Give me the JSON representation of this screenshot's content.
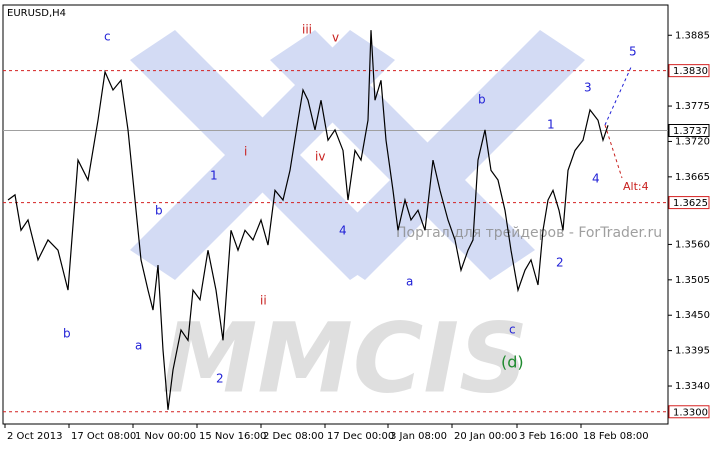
{
  "chart_data": {
    "type": "line",
    "title": "EURUSD,H4",
    "xlim": [
      0,
      665
    ],
    "xticks": [
      {
        "value": 2,
        "label": "2 Oct 2013"
      },
      {
        "value": 66,
        "label": "17 Oct 08:00"
      },
      {
        "value": 130,
        "label": "1 Nov 00:00"
      },
      {
        "value": 194,
        "label": "15 Nov 16:00"
      },
      {
        "value": 258,
        "label": "2 Dec 08:00"
      },
      {
        "value": 322,
        "label": "17 Dec 00:00"
      },
      {
        "value": 385,
        "label": "3 Jan 08:00"
      },
      {
        "value": 449,
        "label": "20 Jan 00:00"
      },
      {
        "value": 514,
        "label": "3 Feb 16:00"
      },
      {
        "value": 578,
        "label": "18 Feb 08:00"
      }
    ],
    "ylim": [
      1.3281,
      1.3932
    ],
    "yticks": [
      {
        "value": 1.3885,
        "label": "1.3885"
      },
      {
        "value": 1.3775,
        "label": "1.3775"
      },
      {
        "value": 1.372,
        "label": "1.3720"
      },
      {
        "value": 1.3665,
        "label": "1.3665"
      },
      {
        "value": 1.356,
        "label": "1.3560"
      },
      {
        "value": 1.3505,
        "label": "1.3505"
      },
      {
        "value": 1.345,
        "label": "1.3450"
      },
      {
        "value": 1.3395,
        "label": "1.3395"
      },
      {
        "value": 1.334,
        "label": "1.3340"
      }
    ],
    "levels": [
      {
        "value": 1.383,
        "label": "1.3830",
        "color": "#d42020"
      },
      {
        "value": 1.3737,
        "label": "1.3737",
        "color": "#a0a0a0"
      },
      {
        "value": 1.3625,
        "label": "1.3625",
        "color": "#d42020"
      },
      {
        "value": 1.33,
        "label": "1.3300",
        "color": "#d42020"
      }
    ],
    "series": [
      {
        "name": "EURUSD",
        "color": "#000000",
        "x": [
          5,
          12,
          18,
          25,
          35,
          45,
          55,
          65,
          75,
          85,
          95,
          102,
          110,
          118,
          125,
          132,
          138,
          145,
          150,
          155,
          160,
          165,
          170,
          178,
          185,
          190,
          197,
          205,
          213,
          220,
          228,
          235,
          242,
          250,
          258,
          265,
          272,
          280,
          287,
          295,
          300,
          305,
          312,
          318,
          325,
          332,
          340,
          345,
          352,
          358,
          365,
          368,
          372,
          378,
          383,
          390,
          395,
          402,
          408,
          415,
          422,
          430,
          437,
          445,
          452,
          458,
          465,
          470,
          475,
          482,
          488,
          495,
          502,
          508,
          515,
          522,
          528,
          535,
          540,
          545,
          550,
          556,
          560,
          565,
          572,
          580,
          587,
          595,
          600,
          605
        ],
        "values": [
          1.3629,
          1.3637,
          1.3582,
          1.3598,
          1.3536,
          1.3567,
          1.3551,
          1.3489,
          1.3691,
          1.366,
          1.3753,
          1.3828,
          1.38,
          1.3815,
          1.3738,
          1.3629,
          1.3536,
          1.3489,
          1.3458,
          1.3528,
          1.3396,
          1.3303,
          1.3365,
          1.3427,
          1.3411,
          1.3489,
          1.3474,
          1.3551,
          1.3489,
          1.3411,
          1.3582,
          1.3551,
          1.3582,
          1.3567,
          1.3598,
          1.3559,
          1.3644,
          1.3629,
          1.3675,
          1.3753,
          1.38,
          1.3784,
          1.3738,
          1.3784,
          1.3722,
          1.3738,
          1.3706,
          1.3629,
          1.3706,
          1.3691,
          1.3753,
          1.3893,
          1.3784,
          1.3815,
          1.3722,
          1.3644,
          1.3582,
          1.3629,
          1.3598,
          1.3613,
          1.3582,
          1.3691,
          1.3644,
          1.3598,
          1.3567,
          1.352,
          1.3551,
          1.3567,
          1.3691,
          1.3738,
          1.3675,
          1.366,
          1.3613,
          1.3551,
          1.3489,
          1.352,
          1.3536,
          1.3497,
          1.3582,
          1.3629,
          1.3644,
          1.3613,
          1.3582,
          1.3675,
          1.3706,
          1.3722,
          1.3769,
          1.3753,
          1.3722,
          1.3745
        ]
      }
    ],
    "annotations": [
      "c",
      "iii",
      "v",
      "5",
      "3",
      "b",
      "1",
      "i",
      "iv",
      "1",
      "4",
      "Alt:4",
      "b",
      "4",
      "a",
      "2",
      "ii",
      "b",
      "c",
      "a",
      "(d)",
      "2"
    ],
    "watermark": "MMCIS",
    "watermark_text": "Портал для трейдеров - ForTrader.ru"
  }
}
